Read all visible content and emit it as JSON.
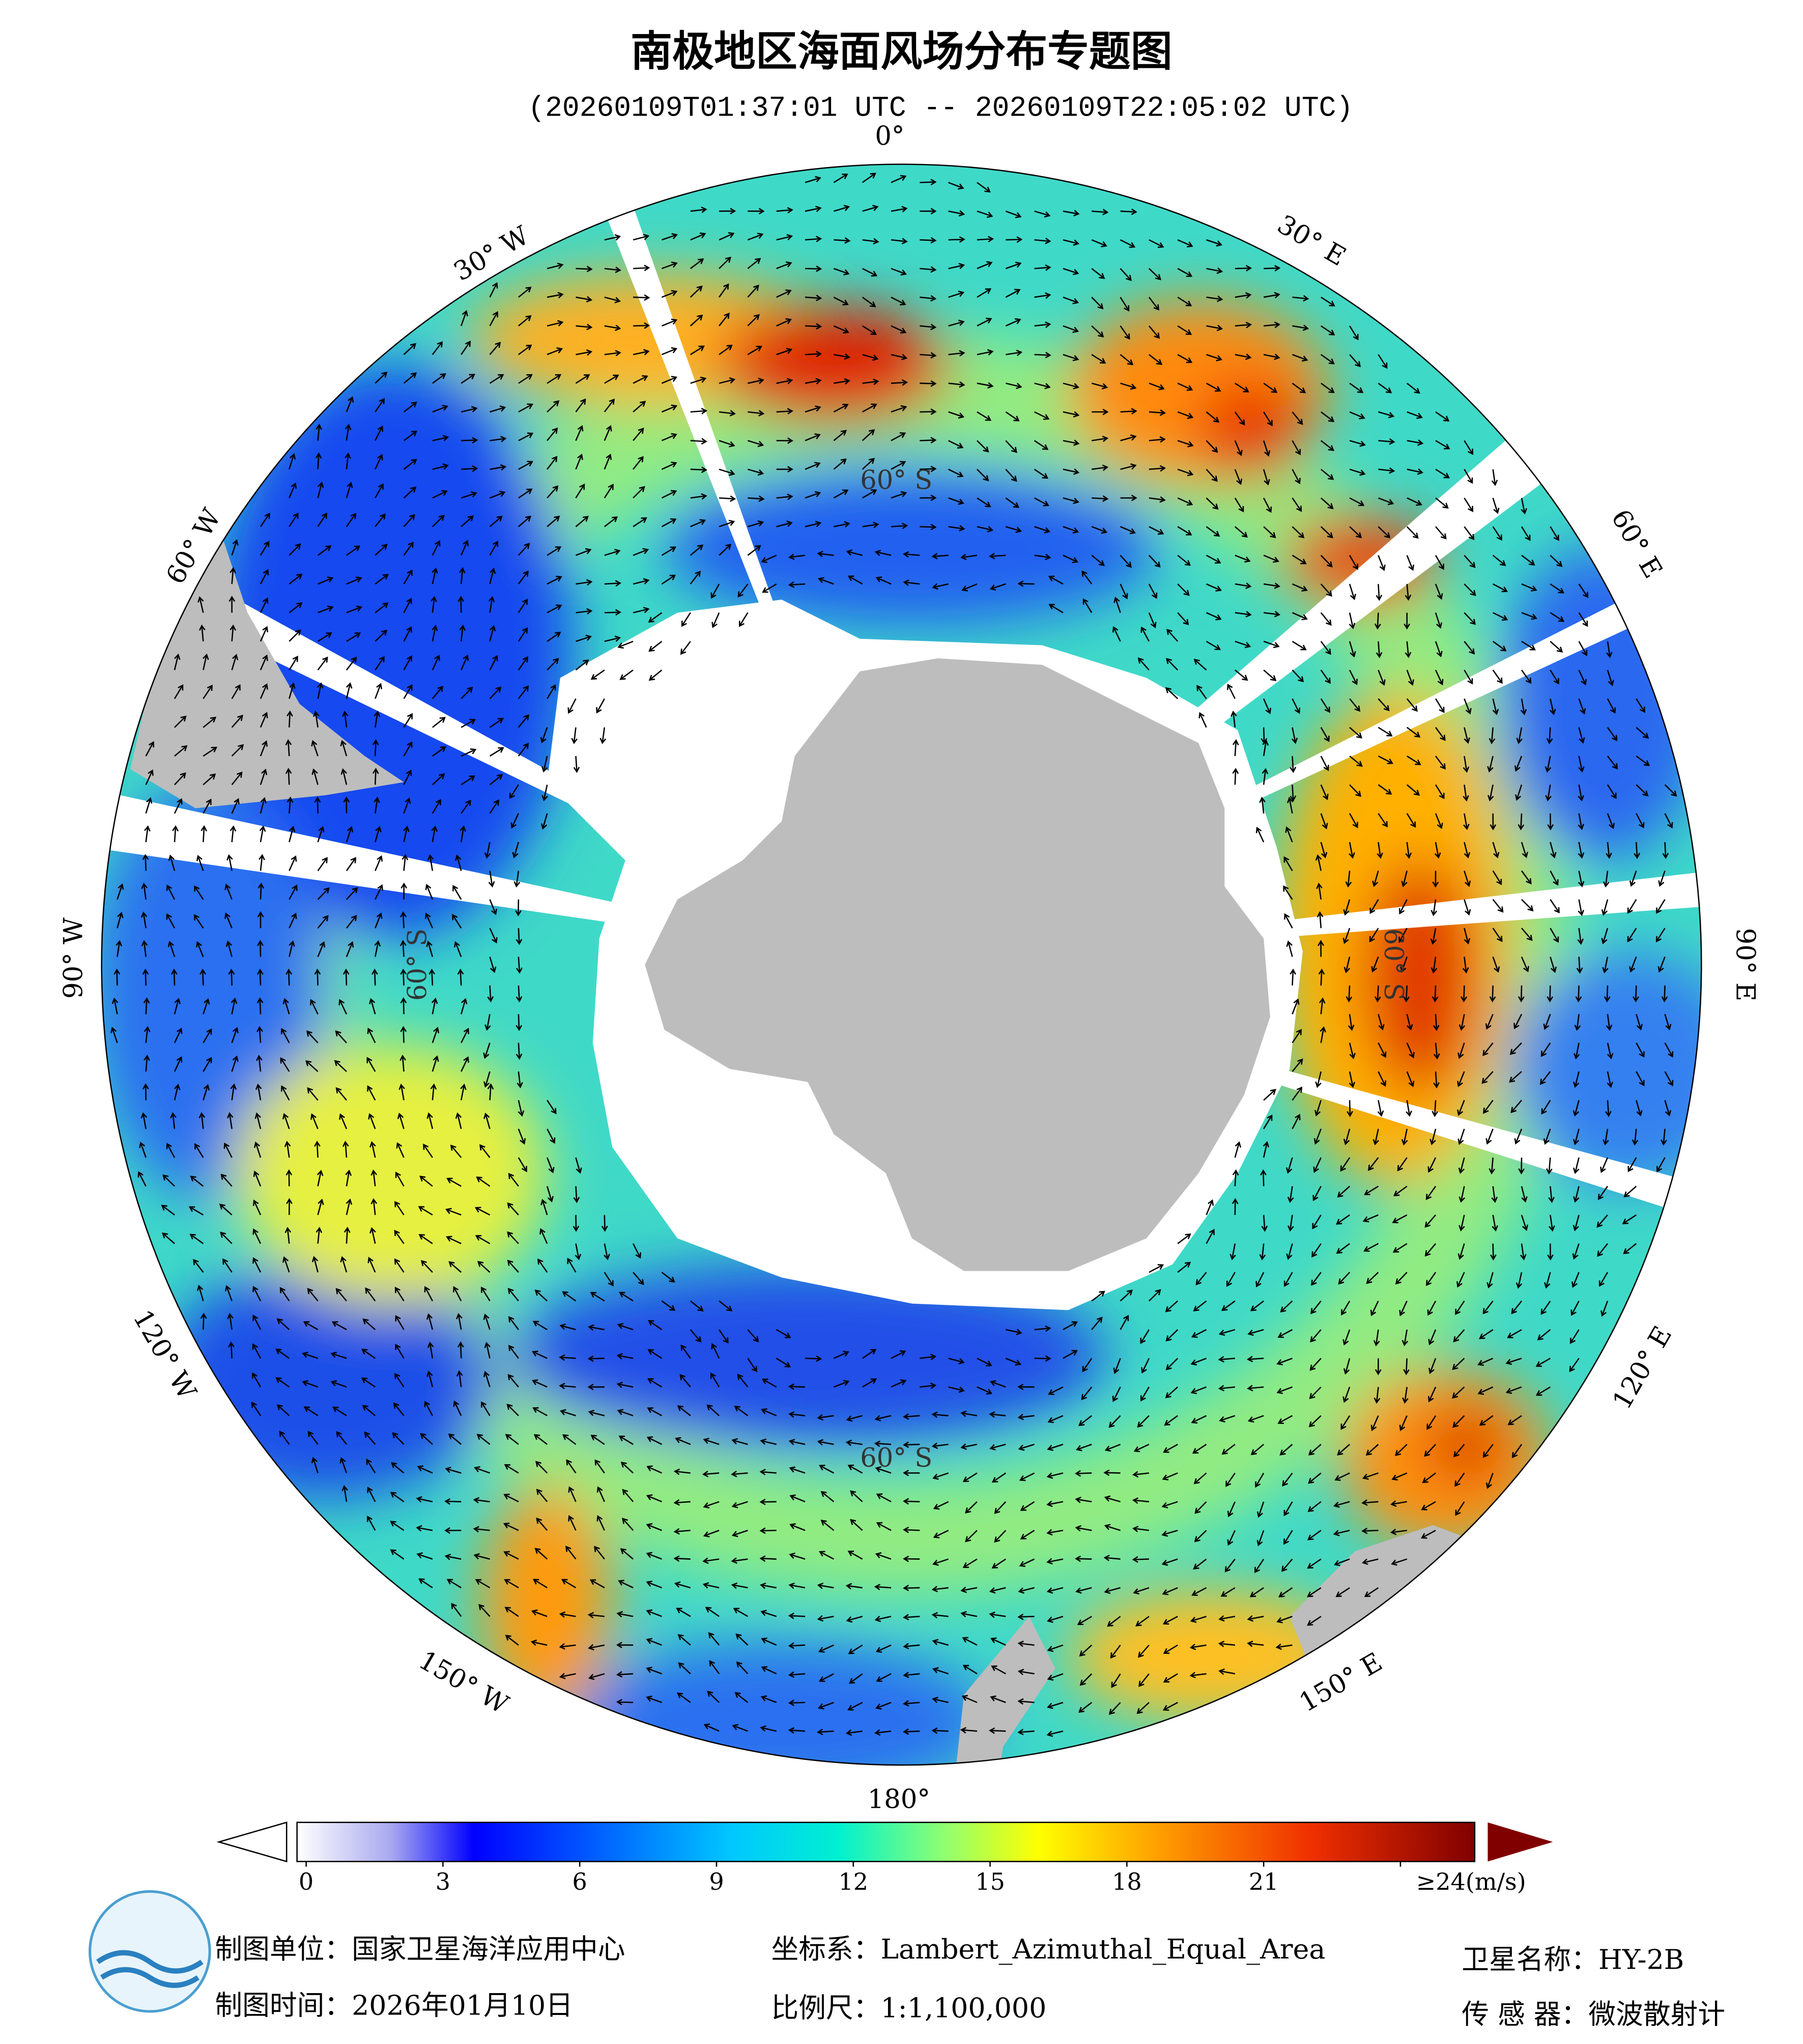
{
  "title": "南极地区海面风场分布专题图",
  "subtitle": "(20260109T01:37:01 UTC -- 20260109T22:05:02 UTC)",
  "map": {
    "longitude_labels": [
      "0°",
      "30° E",
      "60° E",
      "90° E",
      "120° E",
      "150° E",
      "180°",
      "150° W",
      "120° W",
      "90° W",
      "60° W",
      "30° W"
    ],
    "latitude_labels": [
      "60° S",
      "60° S",
      "60° S",
      "60° S"
    ]
  },
  "colorbar": {
    "lim": [
      0,
      24
    ],
    "ticks": [
      0,
      3,
      6,
      9,
      12,
      15,
      18,
      21,
      {
        "value": 24,
        "label": "≥24(m/s)"
      }
    ]
  },
  "footer": {
    "producer": "制图单位：国家卫星海洋应用中心",
    "date": "制图时间：2026年01月10日",
    "projection": "坐标系：Lambert_Azimuthal_Equal_Area",
    "scale": "比例尺：1:1,100,000",
    "satellite": "卫星名称：HY-2B",
    "sensor": "传 感 器：微波散射计"
  }
}
